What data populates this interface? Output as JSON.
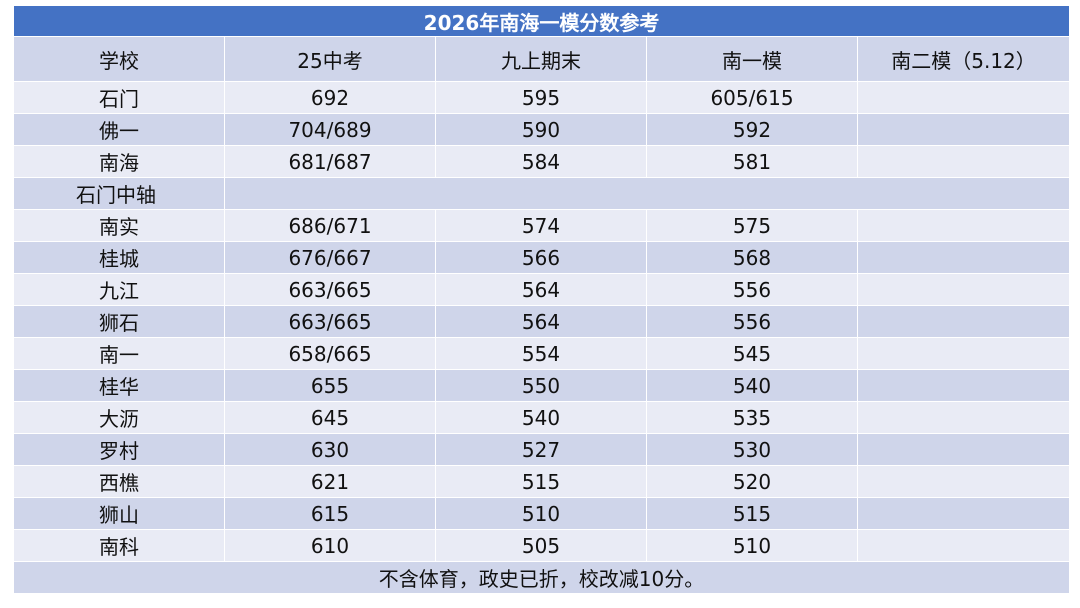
{
  "title": "2026年南海一模分数参考",
  "headers": [
    "学校",
    "25中考",
    "九上期末",
    "南一模",
    "南二模（5.12）"
  ],
  "rows_top": [
    {
      "school": "石门",
      "zhongkao": "692",
      "qimo": "595",
      "yimo": "605/615",
      "ermo": ""
    },
    {
      "school": "佛一",
      "zhongkao": "704/689",
      "qimo": "590",
      "yimo": "592",
      "ermo": ""
    },
    {
      "school": "南海",
      "zhongkao": "681/687",
      "qimo": "584",
      "yimo": "581",
      "ermo": ""
    }
  ],
  "section_label": "石门中轴",
  "rows_bottom": [
    {
      "school": "南实",
      "zhongkao": "686/671",
      "qimo": "574",
      "yimo": "575",
      "ermo": ""
    },
    {
      "school": "桂城",
      "zhongkao": "676/667",
      "qimo": "566",
      "yimo": "568",
      "ermo": ""
    },
    {
      "school": "九江",
      "zhongkao": "663/665",
      "qimo": "564",
      "yimo": "556",
      "ermo": ""
    },
    {
      "school": "狮石",
      "zhongkao": "663/665",
      "qimo": "564",
      "yimo": "556",
      "ermo": ""
    },
    {
      "school": "南一",
      "zhongkao": "658/665",
      "qimo": "554",
      "yimo": "545",
      "ermo": ""
    },
    {
      "school": "桂华",
      "zhongkao": "655",
      "qimo": "550",
      "yimo": "540",
      "ermo": ""
    },
    {
      "school": "大沥",
      "zhongkao": "645",
      "qimo": "540",
      "yimo": "535",
      "ermo": ""
    },
    {
      "school": "罗村",
      "zhongkao": "630",
      "qimo": "527",
      "yimo": "530",
      "ermo": ""
    },
    {
      "school": "西樵",
      "zhongkao": "621",
      "qimo": "515",
      "yimo": "520",
      "ermo": ""
    },
    {
      "school": "狮山",
      "zhongkao": "615",
      "qimo": "510",
      "yimo": "515",
      "ermo": ""
    },
    {
      "school": "南科",
      "zhongkao": "610",
      "qimo": "505",
      "yimo": "510",
      "ermo": ""
    }
  ],
  "footer_note": "不含体育，政史已折，校改减10分。",
  "colors": {
    "title_bg": "#4472c4",
    "header_bg": "#cfd5ea",
    "row_light": "#e9ebf5",
    "row_dark": "#cfd5ea"
  }
}
